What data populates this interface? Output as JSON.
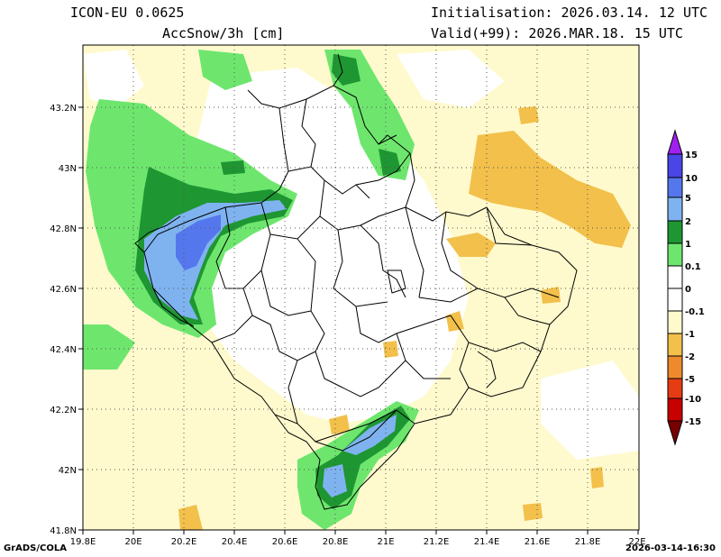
{
  "header": {
    "model": "ICON-EU 0.0625",
    "variable": "AccSnow/3h [cm]",
    "initialisation": "Initialisation: 2026.03.14. 12 UTC",
    "valid": "Valid(+99): 2026.MAR.18. 15 UTC"
  },
  "axes": {
    "lon_ticks": [
      "19.8E",
      "20E",
      "20.2E",
      "20.4E",
      "20.6E",
      "20.8E",
      "21E",
      "21.2E",
      "21.4E",
      "21.6E",
      "21.8E",
      "22E"
    ],
    "lat_ticks": [
      "41.8N",
      "42N",
      "42.2N",
      "42.4N",
      "42.6N",
      "42.8N",
      "43N",
      "43.2N"
    ]
  },
  "legend": {
    "labels": [
      "15",
      "10",
      "5",
      "2",
      "1",
      "0.1",
      "0",
      "-0.1",
      "-1",
      "-2",
      "-5",
      "-10",
      "-15"
    ],
    "colors": {
      "above_15": "#a020f0",
      "15": "#4a45e6",
      "10": "#5577ee",
      "5": "#7fb3f0",
      "2": "#1e9632",
      "1": "#6ee66e",
      "0.1": "#ffffff",
      "0": "#ffffff",
      "-0.1": "#fffacd",
      "-1": "#f2c04b",
      "-2": "#ee8a2d",
      "-5": "#e63c14",
      "-10": "#c80000",
      "below_-15": "#780000"
    }
  },
  "footer": {
    "left": "GrADS/COLA",
    "right": "2026-03-14-16:30"
  }
}
